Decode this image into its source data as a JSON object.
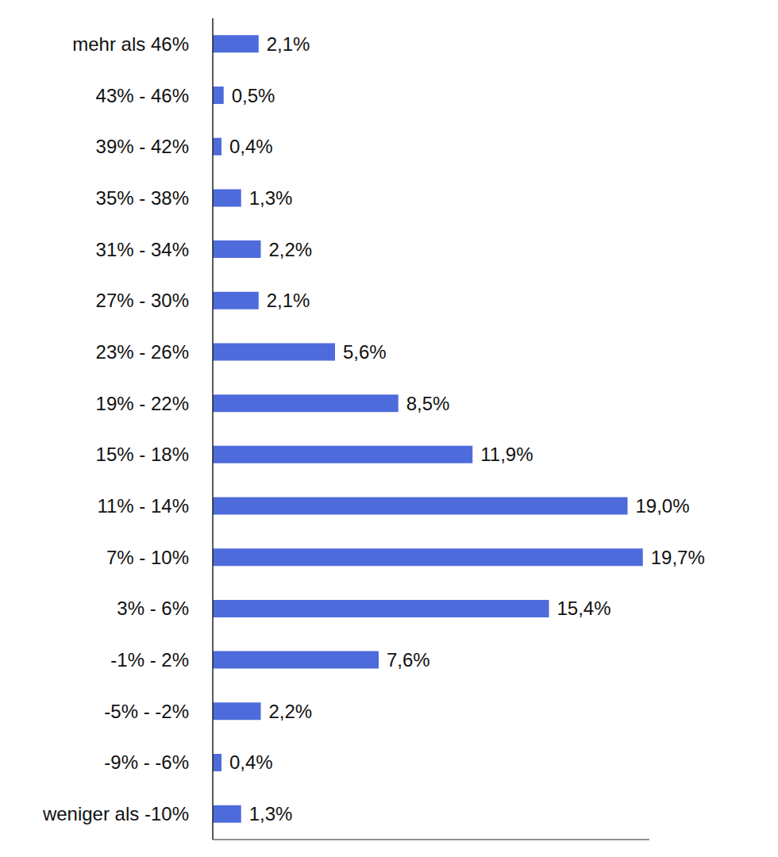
{
  "chart_data": {
    "type": "bar",
    "orientation": "horizontal",
    "categories": [
      "mehr als 46%",
      "43% - 46%",
      "39% - 42%",
      "35% - 38%",
      "31% - 34%",
      "27% - 30%",
      "23% - 26%",
      "19% - 22%",
      "15% - 18%",
      "11% - 14%",
      "7% - 10%",
      "3% - 6%",
      "-1% - 2%",
      "-5% - -2%",
      "-9% - -6%",
      "weniger als -10%"
    ],
    "values": [
      2.1,
      0.5,
      0.4,
      1.3,
      2.2,
      2.1,
      5.6,
      8.5,
      11.9,
      19.0,
      19.7,
      15.4,
      7.6,
      2.2,
      0.4,
      1.3
    ],
    "value_labels": [
      "2,1%",
      "0,5%",
      "0,4%",
      "1,3%",
      "2,2%",
      "2,1%",
      "5,6%",
      "8,5%",
      "11,9%",
      "19,0%",
      "19,7%",
      "15,4%",
      "7,6%",
      "2,2%",
      "0,4%",
      "1,3%"
    ],
    "color": "#4e6bdc",
    "xlim": [
      0,
      20
    ],
    "grid": false,
    "data_labels": true,
    "tick_labels": "y"
  }
}
